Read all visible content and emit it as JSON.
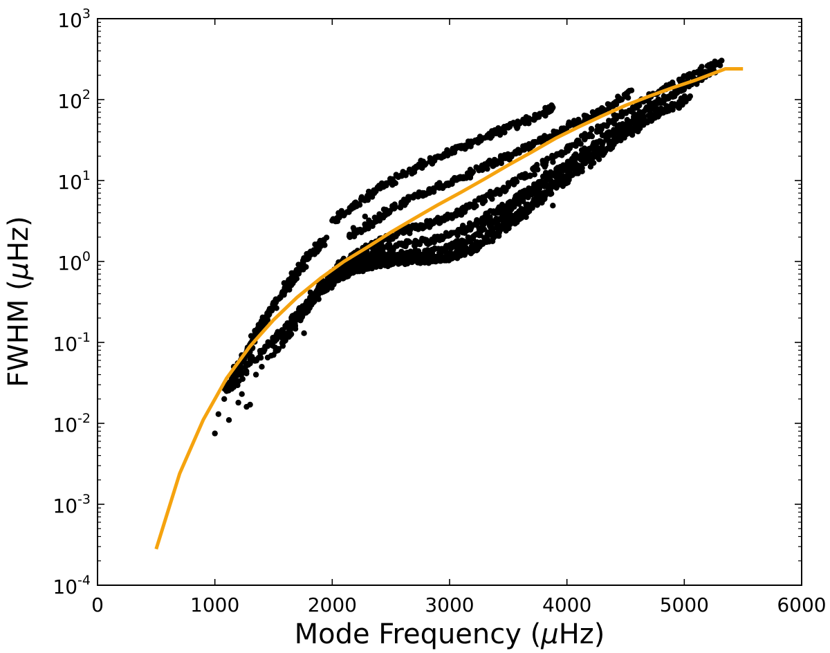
{
  "chart_data": {
    "type": "scatter",
    "xlabel_prefix": "Mode Frequency (",
    "xlabel_mu": "μ",
    "xlabel_suffix": "Hz)",
    "ylabel_prefix": "FWHM (",
    "ylabel_mu": "μ",
    "ylabel_suffix": "Hz)",
    "xlim": [
      0,
      6000
    ],
    "ylim": [
      0.0001,
      1000
    ],
    "yscale": "log",
    "grid": false,
    "x_ticks": [
      0,
      1000,
      2000,
      3000,
      4000,
      5000,
      6000
    ],
    "x_tick_labels": [
      "0",
      "1000",
      "2000",
      "3000",
      "4000",
      "5000",
      "6000"
    ],
    "y_ticks": [
      {
        "value": 0.0001,
        "base": "10",
        "exp": "-4"
      },
      {
        "value": 0.001,
        "base": "10",
        "exp": "-3"
      },
      {
        "value": 0.01,
        "base": "10",
        "exp": "-2"
      },
      {
        "value": 0.1,
        "base": "10",
        "exp": "-1"
      },
      {
        "value": 1,
        "base": "10",
        "exp": "0"
      },
      {
        "value": 10,
        "base": "10",
        "exp": "1"
      },
      {
        "value": 100,
        "base": "10",
        "exp": "2"
      },
      {
        "value": 1000,
        "base": "10",
        "exp": "3"
      }
    ],
    "colors": {
      "points": "#000000",
      "fit_line": "#f5a30f"
    },
    "fit_line": {
      "x": [
        500,
        700,
        900,
        1100,
        1300,
        1500,
        1700,
        1900,
        2100,
        2300,
        2500,
        2700,
        2900,
        3100,
        3300,
        3500,
        3700,
        3900,
        4100,
        4300,
        4500,
        4700,
        4900,
        5100,
        5350,
        5500
      ],
      "y": [
        0.00028,
        0.0024,
        0.011,
        0.036,
        0.09,
        0.19,
        0.36,
        0.62,
        1.0,
        1.5,
        2.3,
        3.4,
        5.0,
        7.2,
        10.5,
        15.5,
        22.5,
        33,
        46,
        63,
        85,
        110,
        140,
        175,
        240,
        240
      ]
    },
    "series": [
      {
        "x": [
          1930,
          1870,
          1800,
          1720,
          1650,
          1580,
          1510,
          1440,
          1380,
          1320,
          1260,
          1200,
          1150,
          1100
        ],
        "y": [
          1.85,
          1.45,
          1.1,
          0.8,
          0.58,
          0.42,
          0.3,
          0.21,
          0.15,
          0.105,
          0.072,
          0.05,
          0.035,
          0.025
        ]
      },
      {
        "x": [
          2000,
          2150,
          2300,
          2450,
          2600,
          2750,
          2900,
          3050,
          3200,
          3350,
          3500,
          3650,
          3800,
          3880
        ],
        "y": [
          3.2,
          4.6,
          6.5,
          8.9,
          11.8,
          15.4,
          19.6,
          24.5,
          30,
          37,
          45,
          54,
          66,
          80
        ]
      },
      {
        "x": [
          2150,
          2300,
          2450,
          2600,
          2750,
          2900,
          3050,
          3200,
          3350,
          3500,
          3650,
          3800,
          3950,
          4100,
          4250,
          4400,
          4550
        ],
        "y": [
          2.0,
          2.8,
          3.9,
          5.2,
          6.7,
          8.4,
          10.2,
          12.8,
          16,
          20,
          25,
          32,
          41,
          53,
          68,
          90,
          130
        ]
      },
      {
        "x": [
          1700,
          1850,
          2000,
          2150,
          2300,
          2450,
          2600,
          2750,
          2900,
          3050,
          3200,
          3350,
          3500,
          3650,
          3800,
          3950,
          4100,
          4300,
          4500,
          4700,
          4900,
          5100,
          5300
        ],
        "y": [
          0.2,
          0.4,
          0.7,
          1.1,
          1.5,
          1.9,
          2.3,
          2.7,
          3.2,
          3.9,
          5.0,
          6.5,
          8.5,
          11.5,
          16,
          22,
          31,
          46,
          70,
          105,
          155,
          215,
          290
        ]
      },
      {
        "x": [
          1650,
          1800,
          1950,
          2100,
          2250,
          2400,
          2550,
          2700,
          2850,
          3000,
          3150,
          3300,
          3450,
          3600,
          3750,
          3900,
          4050,
          4250,
          4450,
          4650,
          4850,
          5050,
          5250
        ],
        "y": [
          0.15,
          0.3,
          0.55,
          0.85,
          1.15,
          1.4,
          1.55,
          1.7,
          1.85,
          2.1,
          2.6,
          3.4,
          4.6,
          6.3,
          8.8,
          12.5,
          18,
          28,
          45,
          70,
          105,
          155,
          230
        ]
      },
      {
        "x": [
          1600,
          1750,
          1900,
          2050,
          2200,
          2350,
          2500,
          2650,
          2800,
          2950,
          3100,
          3250,
          3400,
          3550,
          3700,
          3850,
          4000,
          4200,
          4400,
          4600,
          4800,
          5000,
          5200
        ],
        "y": [
          0.12,
          0.25,
          0.45,
          0.7,
          0.95,
          1.1,
          1.2,
          1.25,
          1.3,
          1.4,
          1.7,
          2.3,
          3.3,
          4.8,
          7,
          10.5,
          15.5,
          25,
          40,
          62,
          95,
          140,
          210
        ]
      },
      {
        "x": [
          1500,
          1650,
          1800,
          1950,
          2100,
          2250,
          2400,
          2550,
          2700,
          2850,
          3000,
          3150,
          3300,
          3450,
          3600,
          3750,
          3900,
          4050,
          4250,
          4450,
          4650,
          4850,
          5050
        ],
        "y": [
          0.07,
          0.15,
          0.3,
          0.5,
          0.7,
          0.85,
          0.95,
          1.0,
          1.02,
          1.05,
          1.15,
          1.4,
          1.9,
          2.8,
          4.2,
          6.3,
          9.5,
          14,
          22,
          36,
          55,
          80,
          110
        ]
      },
      {
        "x": [
          1150,
          1300,
          1450,
          1600,
          1750,
          1900,
          2050,
          2200,
          2350,
          2500,
          2650,
          2800,
          2950,
          3100,
          3250,
          3400,
          3550,
          3700,
          3850,
          4000,
          4200,
          4400,
          4600,
          4800,
          5000
        ],
        "y": [
          0.03,
          0.055,
          0.09,
          0.16,
          0.27,
          0.42,
          0.6,
          0.78,
          0.9,
          0.98,
          1.02,
          1.05,
          1.08,
          1.2,
          1.5,
          2.1,
          3.1,
          4.6,
          7,
          10.5,
          17,
          28,
          45,
          68,
          95
        ]
      },
      {
        "x": [
          1000,
          1030,
          1080,
          1120,
          1160,
          1200,
          1230,
          1270,
          1300,
          1350,
          1400,
          1450,
          1520,
          1600,
          1680,
          1760,
          3880,
          3640,
          3760,
          3820,
          3460,
          3200,
          2280,
          2440,
          2180
        ],
        "y": [
          0.0075,
          0.013,
          0.02,
          0.011,
          0.028,
          0.018,
          0.023,
          0.016,
          0.017,
          0.04,
          0.05,
          0.065,
          0.08,
          0.12,
          0.15,
          0.13,
          4.9,
          7.5,
          9.6,
          12.5,
          4.5,
          2.8,
          3.6,
          4.4,
          2.6
        ]
      }
    ]
  }
}
